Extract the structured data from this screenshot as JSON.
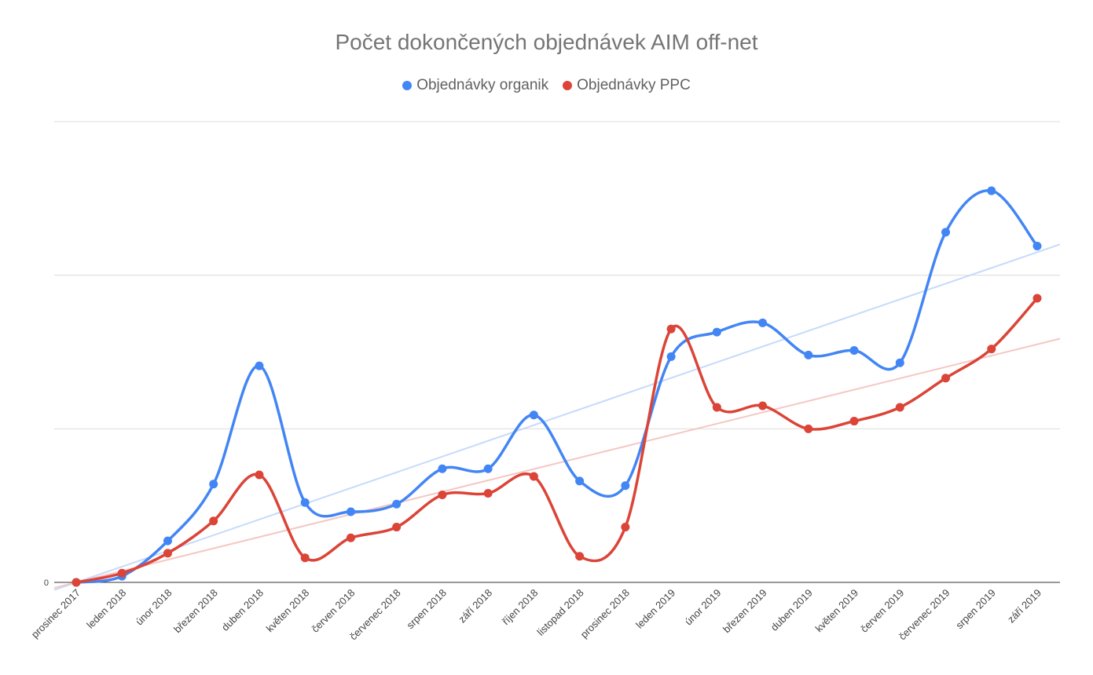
{
  "chart_data": {
    "type": "line",
    "title": "Počet dokončených objednávek AIM off-net",
    "xlabel": "",
    "ylabel": "",
    "categories": [
      "prosinec 2017",
      "leden 2018",
      "únor 2018",
      "březen 2018",
      "duben 2018",
      "květen 2018",
      "červen 2018",
      "červenec 2018",
      "srpen 2018",
      "září 2018",
      "říjen 2018",
      "listopad 2018",
      "prosinec 2018",
      "leden 2019",
      "únor 2019",
      "březen 2019",
      "duben 2019",
      "květen 2019",
      "červen 2019",
      "červenec 2019",
      "srpen 2019",
      "září 2019"
    ],
    "y_tick_labels": [
      "0"
    ],
    "ylim": [
      0,
      3
    ],
    "grid": true,
    "legend_position": "top",
    "trendlines": true,
    "series": [
      {
        "name": "Objednávky organik",
        "color": "#4285f4",
        "trend_color": "#c6dafc",
        "values": [
          0,
          0.04,
          0.27,
          0.64,
          1.41,
          0.52,
          0.46,
          0.51,
          0.74,
          0.74,
          1.09,
          0.66,
          0.63,
          1.47,
          1.63,
          1.69,
          1.48,
          1.51,
          1.43,
          2.28,
          2.55,
          2.19
        ],
        "trend": [
          0.0,
          2.15
        ]
      },
      {
        "name": "Objednávky PPC",
        "color": "#db4437",
        "trend_color": "#f4c7c3",
        "values": [
          0,
          0.06,
          0.19,
          0.4,
          0.7,
          0.16,
          0.29,
          0.36,
          0.57,
          0.58,
          0.69,
          0.17,
          0.36,
          1.65,
          1.14,
          1.15,
          1.0,
          1.05,
          1.14,
          1.33,
          1.52,
          1.85
        ],
        "trend": [
          0.0,
          1.55
        ]
      }
    ]
  }
}
